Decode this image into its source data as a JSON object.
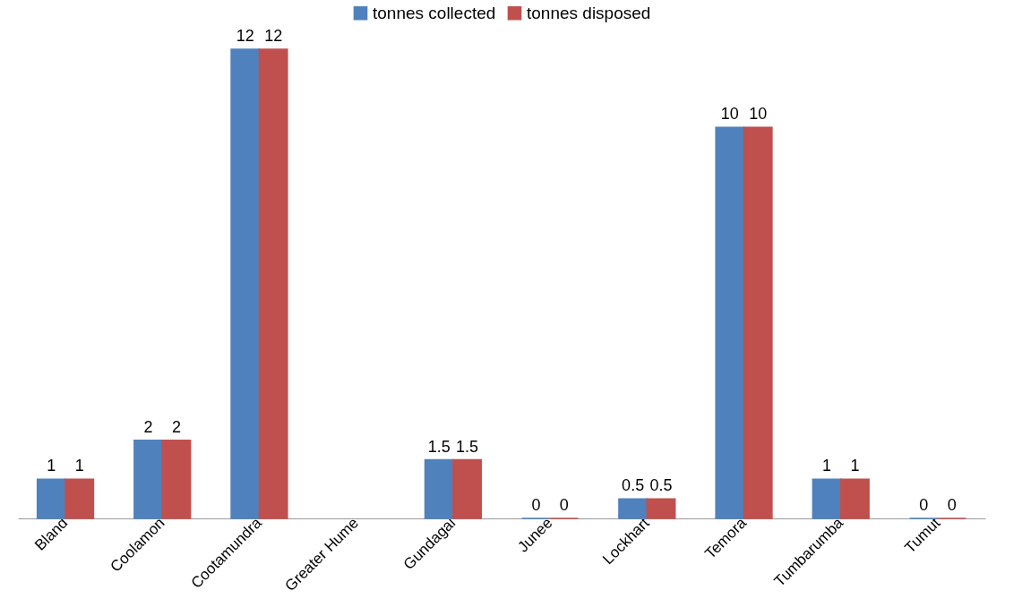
{
  "chart_data": {
    "type": "bar",
    "categories": [
      "Bland",
      "Coolamon",
      "Cootamundra",
      "Greater Hume",
      "Gundagai",
      "Junee",
      "Lockhart",
      "Temora",
      "Tumbarumba",
      "Tumut"
    ],
    "series": [
      {
        "name": "tonnes collected",
        "color": "#4f81bd",
        "values": [
          1,
          2,
          12,
          null,
          1.5,
          0,
          0.5,
          10,
          1,
          0
        ]
      },
      {
        "name": "tonnes disposed",
        "color": "#c0504d",
        "values": [
          1,
          2,
          12,
          null,
          1.5,
          0,
          0.5,
          10,
          1,
          0
        ]
      }
    ],
    "data_labels": true,
    "legend": "top",
    "grid": false
  }
}
